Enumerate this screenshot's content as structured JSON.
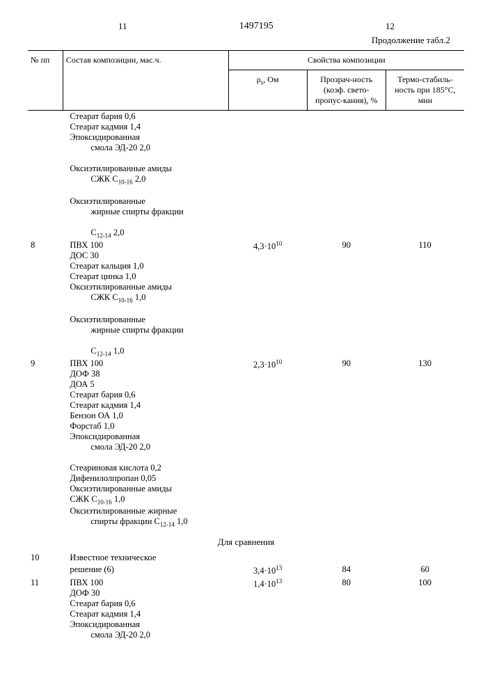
{
  "header": {
    "page_left": "11",
    "doc_number": "1497195",
    "page_right": "12",
    "continuation": "Продолжение табл.2"
  },
  "table_headers": {
    "col_num": "№ пп",
    "col_comp": "Состав композиции, мас.ч.",
    "col_props": "Свойства композиции",
    "col_rho": "ρ<sub>s</sub>, Ом",
    "col_transp": "Прозрач-ность (коэф. свето-пропус-кания), %",
    "col_thermo": "Термо-стабиль-ность при 185°С, мин"
  },
  "rows_header_continuation": [
    "Стеарат бария 0,6",
    "Стеарат кадмия 1,4",
    "Эпоксидированная",
    "смола ЭД-20 2,0|indent",
    "Оксиэтилированные амиды",
    "СЖК С<sub>10-16</sub> 2,0|indent",
    "Оксиэтилированные",
    "жирные спирты фракции|indent",
    "С<sub>12-14</sub> 2,0|indent"
  ],
  "row8": {
    "num": "8",
    "comp": [
      "ПВХ 100",
      "ДОС 30",
      "Стеарат кальция 1,0",
      "Стеарат цинка 1,0",
      "Оксиэтилированные амиды",
      "СЖК С<sub>10-16</sub> 1,0|indent",
      "Оксиэтилированные",
      "жирные спирты фракции|indent",
      "С<sub>12-14</sub> 1,0|indent"
    ],
    "rho": "4,3·10<sup>10</sup>",
    "transp": "90",
    "thermo": "110"
  },
  "row9": {
    "num": "9",
    "comp": [
      "ПВХ 100",
      "ДОФ 38",
      "ДОА 5",
      "Стеарат бария 0,6",
      "Стеарат кадмия 1,4",
      "Бензон ОА 1,0",
      "Форстаб 1,0",
      "Эпоксидированная",
      "смола ЭД-20 2,0|indent",
      "Стеариновая кислота 0,2",
      "Дифенилолпропан 0,05",
      "Оксиэтилированные амиды",
      "СЖК С<sub>10-16</sub> 1,0",
      "Оксиэтилированные жирные",
      "спирты фракции С<sub>12-14</sub> 1,0|indent"
    ],
    "rho": "2,3·10<sup>10</sup>",
    "transp": "90",
    "thermo": "130"
  },
  "comparison_title": "Для сравнения",
  "row10": {
    "num": "10",
    "comp": [
      "Известное техническое",
      "решение (6)"
    ],
    "rho": "3,4·10<sup>13</sup>",
    "transp": "84",
    "thermo": "60"
  },
  "row11": {
    "num": "11",
    "comp": [
      "ПВХ 100",
      "ДОФ 30",
      "Стеарат бария 0,6",
      "Стеарат кадмия 1,4",
      "Эпоксидированная",
      "смола ЭД-20 2,0|indent"
    ],
    "rho": "1,4·10<sup>13</sup>",
    "transp": "80",
    "thermo": "100"
  }
}
